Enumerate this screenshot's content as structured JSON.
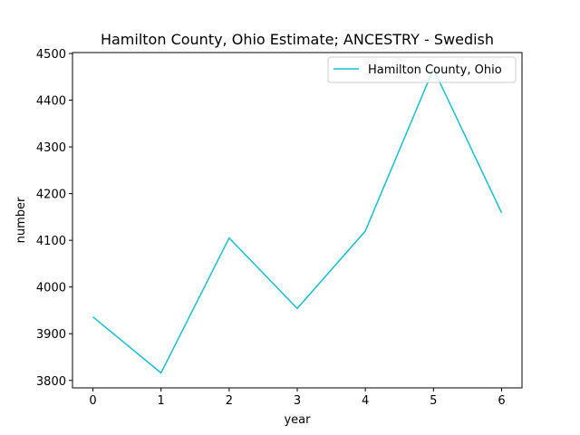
{
  "chart_data": {
    "type": "line",
    "title": "Hamilton County, Ohio Estimate; ANCESTRY - Swedish",
    "xlabel": "year",
    "ylabel": "number",
    "x": [
      0,
      1,
      2,
      3,
      4,
      5,
      6
    ],
    "x_ticks": [
      "0",
      "1",
      "2",
      "3",
      "4",
      "5",
      "6"
    ],
    "y_ticks": [
      "3800",
      "3900",
      "4000",
      "4100",
      "4200",
      "4300",
      "4400",
      "4500"
    ],
    "xlim": [
      -0.3,
      6.3
    ],
    "ylim": [
      3784,
      4502
    ],
    "grid": false,
    "legend_position": "top-right",
    "series": [
      {
        "name": "Hamilton County, Ohio",
        "color": "#17becf",
        "values": [
          3936,
          3816,
          4105,
          3954,
          4120,
          4467,
          4159
        ]
      }
    ]
  }
}
